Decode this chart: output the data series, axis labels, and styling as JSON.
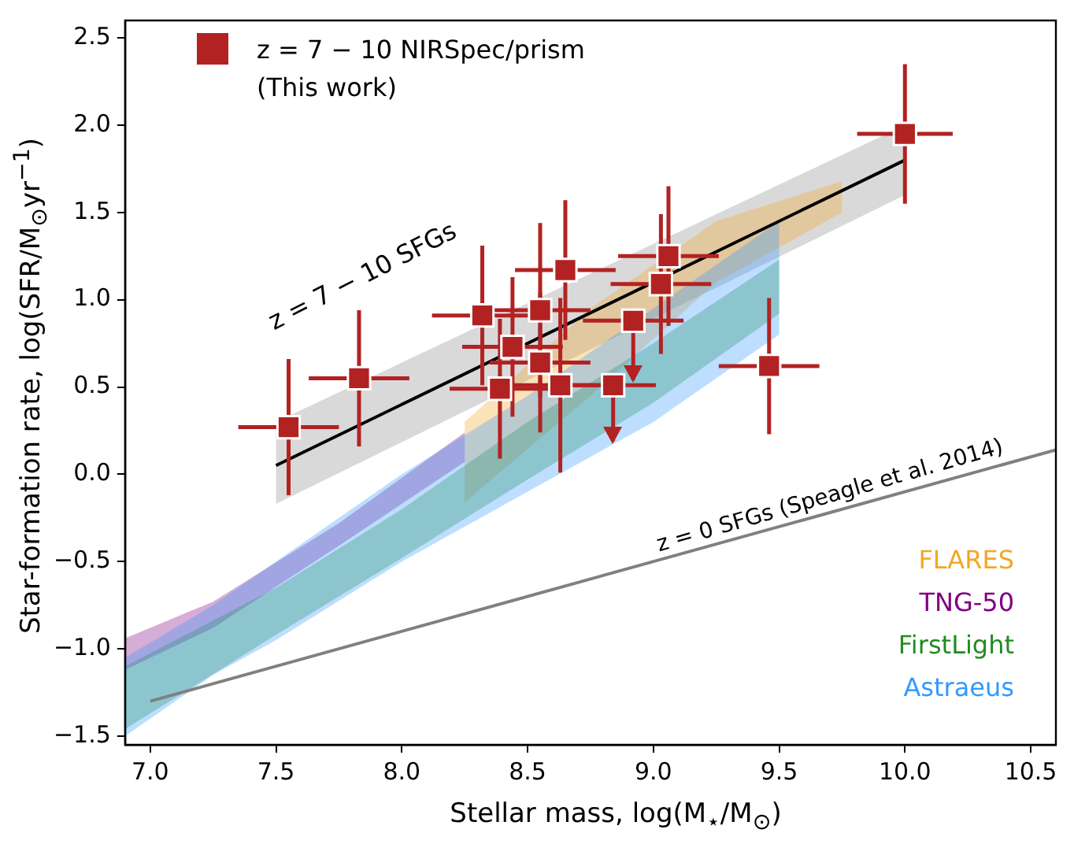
{
  "chart_data": {
    "type": "scatter",
    "xlabel": "Stellar mass, log(M$_{⋆}$/M$_{⊙}$)",
    "ylabel": "Star-formation rate, log(SFR/M$_{⊙}$yr$^{−1}$)",
    "xlim": [
      6.9,
      10.6
    ],
    "ylim": [
      -1.55,
      2.6
    ],
    "xticks": [
      {
        "value": 7,
        "label": "7.0"
      },
      7.5,
      {
        "value": 8,
        "label": "8.0"
      },
      8.5,
      {
        "value": 9,
        "label": "9.0"
      },
      9.5,
      {
        "value": 10,
        "label": "10.0"
      },
      10.5
    ],
    "yticks": [
      {
        "value": -1.5,
        "label": "−1.5"
      },
      {
        "value": -1,
        "label": "−1.0"
      },
      {
        "value": -0.5,
        "label": "−0.5"
      },
      {
        "value": 0,
        "label": "0.0"
      },
      0.5,
      {
        "value": 1,
        "label": "1.0"
      },
      1.5,
      {
        "value": 2,
        "label": "2.0"
      },
      2.5
    ],
    "grid": false,
    "legend": "top left",
    "annotations": [
      "z = 7 − 10 SFGs",
      "z = 0 SFGs (Speagle et al. 2014)"
    ],
    "series": [
      {
        "name": "z = 7 − 10 NIRSpec/prism (This work)",
        "color": "#b22222",
        "marker": "square",
        "x": [
          7.55,
          7.83,
          8.32,
          8.39,
          8.44,
          8.55,
          8.55,
          8.63,
          8.65,
          8.84,
          8.92,
          9.03,
          9.06,
          9.46,
          10.0
        ],
        "values": [
          0.27,
          0.55,
          0.91,
          0.49,
          0.73,
          0.94,
          0.64,
          0.51,
          1.17,
          0.51,
          0.88,
          1.09,
          1.25,
          0.62,
          1.95
        ],
        "errors": [
          0.39,
          0.39,
          0.4,
          0.4,
          0.4,
          0.5,
          0.4,
          0.5,
          0.4,
          [
            0.19,
            0.51
          ],
          [
            0.54,
            0.88
          ],
          0.4,
          0.4,
          0.39,
          0.4
        ],
        "xerrors": [
          0.2,
          0.2,
          0.2,
          0.2,
          0.2,
          0.2,
          0.2,
          0.2,
          0.2,
          0.17,
          0.2,
          0.2,
          0.2,
          0.2,
          0.19
        ]
      },
      {
        "type": "line",
        "marker": "none",
        "color": "#000000",
        "x": [
          7.5,
          10.0
        ],
        "values": [
          0.05,
          1.8
        ],
        "lower": [
          -0.17,
          1.6
        ],
        "upper": [
          0.3,
          2.0
        ]
      },
      {
        "type": "line",
        "marker": "none",
        "color": "#808080",
        "x": [
          7.0,
          10.6
        ],
        "values": [
          -1.3,
          0.14
        ]
      },
      {
        "type": "area",
        "name": "FLARES",
        "color": "#f5a623",
        "x": [
          8.25,
          8.75,
          9.25,
          9.75
        ],
        "values": [
          null,
          null,
          null,
          null
        ],
        "lower": [
          -0.16,
          0.45,
          1.1,
          1.5
        ],
        "upper": [
          0.3,
          0.95,
          1.45,
          1.68
        ]
      },
      {
        "type": "area",
        "name": "TNG-50",
        "color": "#800080",
        "x": [
          6.9,
          7.25,
          7.75,
          8.25
        ],
        "values": [
          null,
          null,
          null,
          null
        ],
        "lower": [
          -1.12,
          -0.88,
          -0.41,
          0.07
        ],
        "upper": [
          -0.94,
          -0.73,
          -0.28,
          0.24
        ]
      },
      {
        "type": "area",
        "name": "FirstLight",
        "color": "#228b22",
        "x": [
          6.9,
          7.5,
          8.0,
          8.5,
          9.0,
          9.5
        ],
        "values": [
          null,
          null,
          null,
          null,
          null,
          null
        ],
        "lower": [
          -1.46,
          -0.92,
          -0.48,
          -0.03,
          0.41,
          0.92
        ],
        "upper": [
          -1.1,
          -0.65,
          -0.2,
          0.3,
          0.75,
          1.23
        ]
      },
      {
        "type": "area",
        "name": "Astraeus",
        "color": "#3399ff",
        "x": [
          6.9,
          7.25,
          7.5,
          8.0,
          8.5,
          9.0,
          9.5
        ],
        "values": [
          null,
          null,
          null,
          null,
          null,
          null,
          null
        ],
        "lower": [
          -1.5,
          -1.15,
          -0.95,
          -0.5,
          -0.1,
          0.3,
          0.8
        ],
        "upper": [
          -1.05,
          -0.75,
          -0.5,
          0.0,
          0.45,
          0.95,
          1.45
        ]
      }
    ]
  }
}
